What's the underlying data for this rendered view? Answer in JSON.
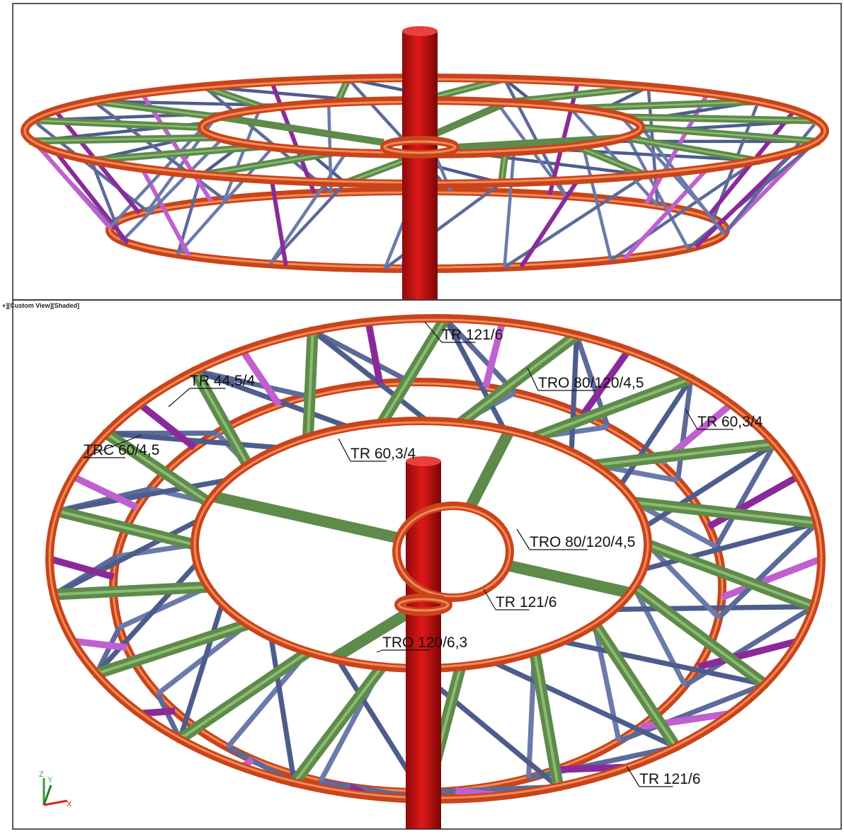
{
  "viewport_label": "+][Custom View][Shaded]",
  "annotations": [
    {
      "label": "TR 121/6"
    },
    {
      "label": "TRO 80/120/4,5"
    },
    {
      "label": "TR 44,5/4"
    },
    {
      "label": "TR 60,3/4"
    },
    {
      "label": "TRC 60/4,5"
    },
    {
      "label": "TR 60,3/4"
    },
    {
      "label": "TRO 80/120/4,5"
    },
    {
      "label": "TR 121/6"
    },
    {
      "label": "TRO 120/6,3"
    },
    {
      "label": "TR 121/6"
    }
  ],
  "axis_triad": {
    "z": "Z",
    "y": "Y",
    "x": "X"
  }
}
